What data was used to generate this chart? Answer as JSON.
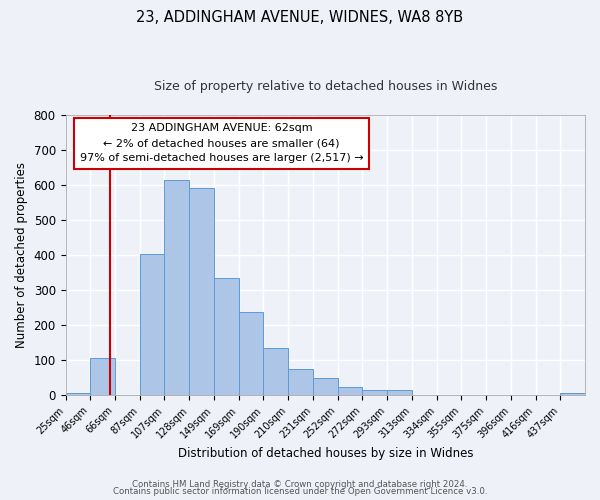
{
  "title1": "23, ADDINGHAM AVENUE, WIDNES, WA8 8YB",
  "title2": "Size of property relative to detached houses in Widnes",
  "xlabel": "Distribution of detached houses by size in Widnes",
  "ylabel": "Number of detached properties",
  "bar_labels": [
    "25sqm",
    "46sqm",
    "66sqm",
    "87sqm",
    "107sqm",
    "128sqm",
    "149sqm",
    "169sqm",
    "190sqm",
    "210sqm",
    "231sqm",
    "252sqm",
    "272sqm",
    "293sqm",
    "313sqm",
    "334sqm",
    "355sqm",
    "375sqm",
    "396sqm",
    "416sqm",
    "437sqm"
  ],
  "bar_values": [
    7,
    107,
    0,
    403,
    614,
    591,
    334,
    238,
    135,
    76,
    50,
    25,
    16,
    16,
    0,
    0,
    0,
    0,
    0,
    0,
    8
  ],
  "bar_color": "#adc6e8",
  "bar_edgecolor": "#5b9bd5",
  "property_line_label": "23 ADDINGHAM AVENUE: 62sqm",
  "annotation_line1": "← 2% of detached houses are smaller (64)",
  "annotation_line2": "97% of semi-detached houses are larger (2,517) →",
  "ylim": [
    0,
    800
  ],
  "yticks": [
    0,
    100,
    200,
    300,
    400,
    500,
    600,
    700,
    800
  ],
  "box_color": "#cc0000",
  "footnote1": "Contains HM Land Registry data © Crown copyright and database right 2024.",
  "footnote2": "Contains public sector information licensed under the Open Government Licence v3.0.",
  "bg_color": "#eef2f8",
  "grid_color": "#ffffff"
}
